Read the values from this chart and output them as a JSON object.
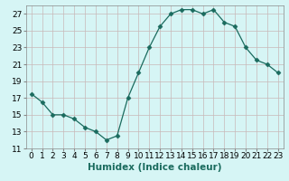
{
  "x": [
    0,
    1,
    2,
    3,
    4,
    5,
    6,
    7,
    8,
    9,
    10,
    11,
    12,
    13,
    14,
    15,
    16,
    17,
    18,
    19,
    20,
    21,
    22,
    23
  ],
  "y": [
    17.5,
    16.5,
    15.0,
    15.0,
    14.5,
    13.5,
    13.0,
    12.0,
    12.5,
    17.0,
    20.0,
    23.0,
    25.5,
    27.0,
    27.5,
    27.5,
    27.0,
    27.5,
    26.0,
    25.5,
    23.0,
    21.5,
    21.0,
    20.0
  ],
  "line_color": "#1a6b5e",
  "marker": "D",
  "marker_size": 2.5,
  "bg_color": "#d6f5f5",
  "grid_color": "#c9b8b8",
  "xlabel": "Humidex (Indice chaleur)",
  "ylim": [
    11,
    28
  ],
  "xlim": [
    -0.5,
    23.5
  ],
  "yticks": [
    11,
    13,
    15,
    17,
    19,
    21,
    23,
    25,
    27
  ],
  "xtick_labels": [
    "0",
    "1",
    "2",
    "3",
    "4",
    "5",
    "6",
    "7",
    "8",
    "9",
    "10",
    "11",
    "12",
    "13",
    "14",
    "15",
    "16",
    "17",
    "18",
    "19",
    "20",
    "21",
    "22",
    "23"
  ],
  "xlabel_fontsize": 7.5,
  "tick_fontsize": 6.5
}
